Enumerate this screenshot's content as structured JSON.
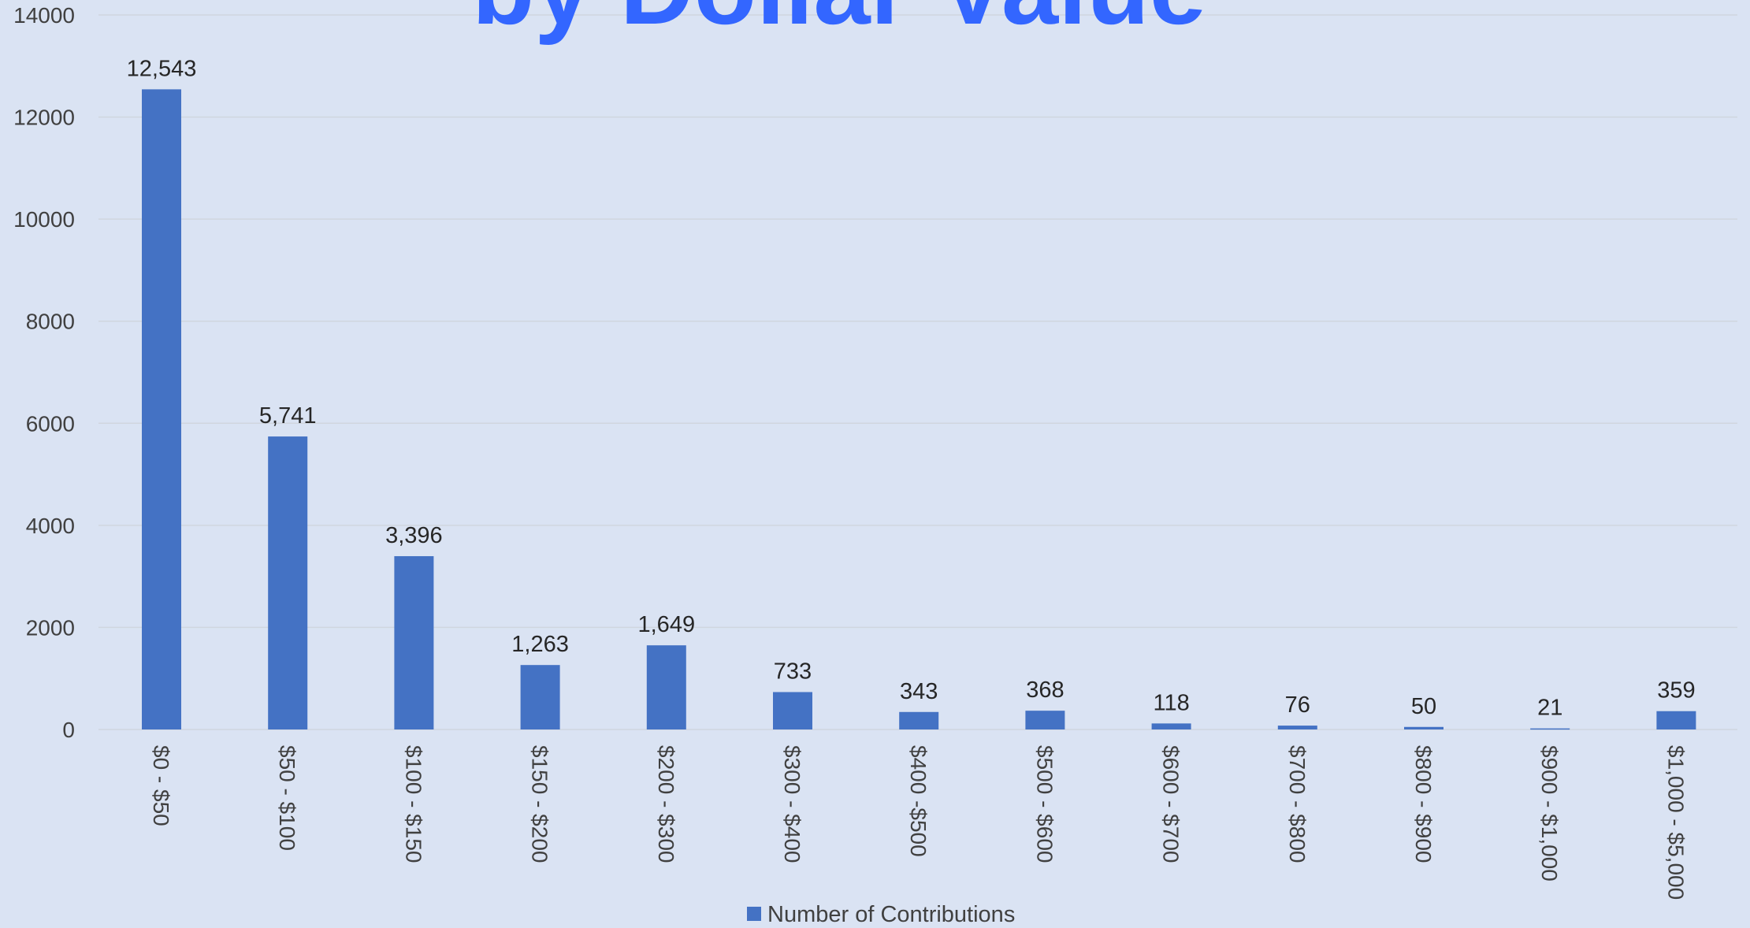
{
  "chart_data": {
    "type": "bar",
    "title": "by Dollar Value",
    "categories": [
      "$0 - $50",
      "$50 - $100",
      "$100 - $150",
      "$150 - $200",
      "$200 - $300",
      "$300 - $400",
      "$400 -$500",
      "$500 - $600",
      "$600 - $700",
      "$700 - $800",
      "$800 - $900",
      "$900 - $1,000",
      "$1,000 - $5,000"
    ],
    "series": [
      {
        "name": "Number of Contributions",
        "values": [
          12543,
          5741,
          3396,
          1263,
          1649,
          733,
          343,
          368,
          118,
          76,
          50,
          21,
          359
        ],
        "data_labels": [
          "12,543",
          "5,741",
          "3,396",
          "1,263",
          "1,649",
          "733",
          "343",
          "368",
          "118",
          "76",
          "50",
          "21",
          "359"
        ]
      }
    ],
    "y_ticks": [
      "0",
      "2000",
      "4000",
      "6000",
      "8000",
      "10000",
      "12000",
      "14000"
    ],
    "ylim": [
      0,
      14000
    ],
    "xlabel": "",
    "ylabel": "",
    "grid": true,
    "legend_position": "bottom",
    "colors": {
      "bar": "#4472c4",
      "background": "#dae3f3",
      "title": "#3366ff"
    }
  }
}
